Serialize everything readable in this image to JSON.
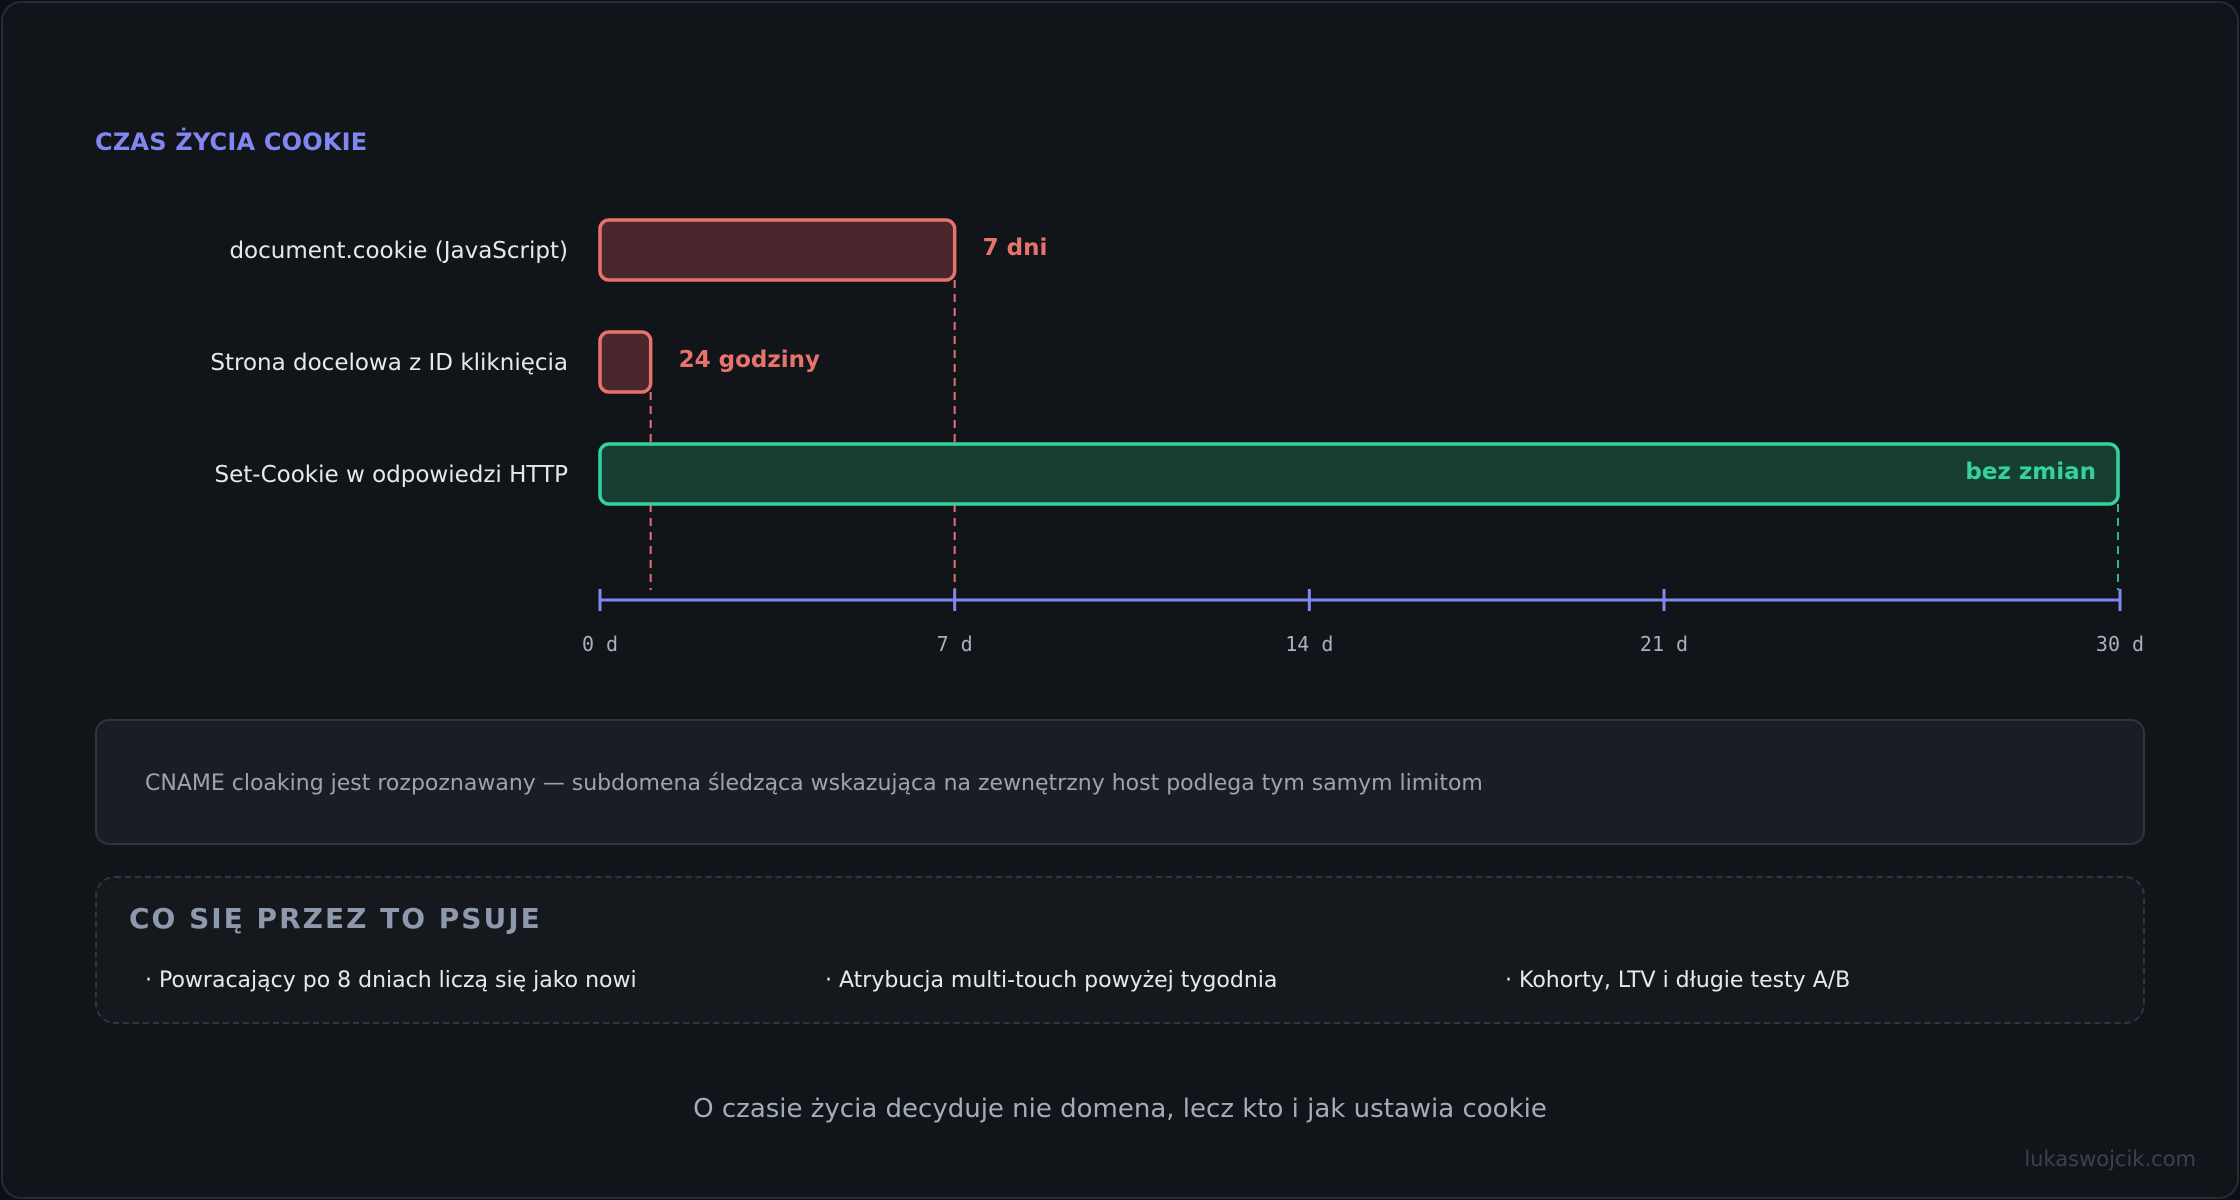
{
  "section_title": "CZAS ŻYCIA COOKIE",
  "colors": {
    "limited_stroke": "#e8726c",
    "limited_fill": "#4a272d",
    "ok_stroke": "#34d399",
    "ok_fill": "#183d32",
    "axis": "#8186f0",
    "guide_ok": "#2fb387"
  },
  "chart_data": {
    "type": "bar",
    "orientation": "horizontal",
    "x_unit": "d",
    "xlim": [
      0,
      30
    ],
    "x_ticks": [
      {
        "value": 0,
        "label": "0 d"
      },
      {
        "value": 7,
        "label": "7 d"
      },
      {
        "value": 14,
        "label": "14 d"
      },
      {
        "value": 21,
        "label": "21 d"
      },
      {
        "value": 30,
        "label": "30 d"
      }
    ],
    "bars": [
      {
        "label": "document.cookie (JavaScript)",
        "value": 7,
        "value_label": "7 dni",
        "status": "limited"
      },
      {
        "label": "Strona docelowa z ID kliknięcia",
        "value": 1,
        "value_label": "24 godziny",
        "status": "limited"
      },
      {
        "label": "Set-Cookie w odpowiedzi HTTP",
        "value": 30,
        "value_label": "bez zmian",
        "status": "ok"
      }
    ]
  },
  "note": {
    "text": "CNAME cloaking jest rozpoznawany — subdomena śledząca wskazująca na zewnętrzny host podlega tym samym limitom"
  },
  "breaks": {
    "title": "CO SIĘ PRZEZ TO PSUJE",
    "items": [
      "· Powracający po 8 dniach liczą się jako nowi",
      "· Atrybucja multi-touch powyżej tygodnia",
      "· Kohorty, LTV i długie testy A/B"
    ]
  },
  "footer": {
    "caption": "O czasie życia decyduje nie domena, lecz kto i jak ustawia cookie",
    "watermark": "lukaswojcik.com"
  }
}
